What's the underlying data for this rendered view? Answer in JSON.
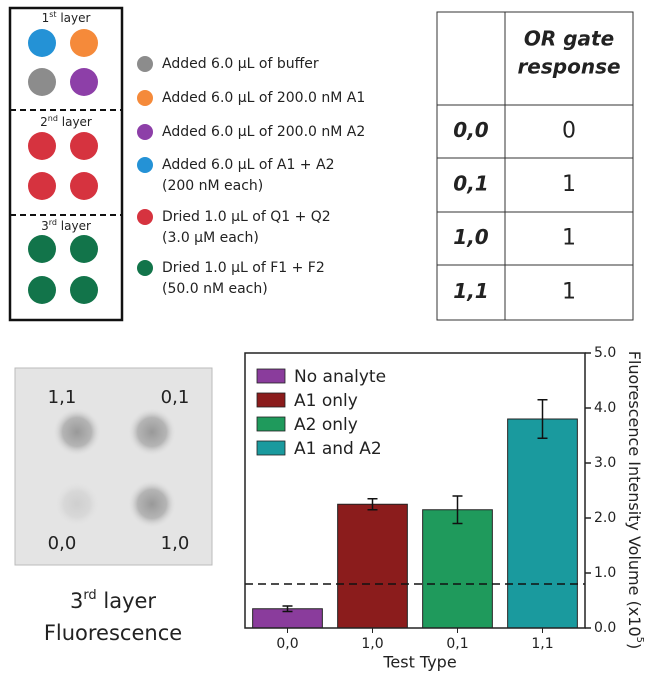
{
  "diagram": {
    "layers": [
      {
        "num": "1",
        "sup": "st",
        "text": " layer"
      },
      {
        "num": "2",
        "sup": "nd",
        "text": " layer"
      },
      {
        "num": "3",
        "sup": "rd",
        "text": " layer"
      }
    ],
    "legend": [
      {
        "color": "#8c8c8c",
        "lines": [
          "Added 6.0 μL of buffer"
        ]
      },
      {
        "color": "#f58a3a",
        "lines": [
          "Added 6.0 μL of 200.0 nM A1"
        ]
      },
      {
        "color": "#8d3fa8",
        "lines": [
          "Added 6.0 μL of 200.0 nM A2"
        ]
      },
      {
        "color": "#2492d6",
        "lines": [
          "Added 6.0 μL of  A1 + A2",
          "(200 nM each)"
        ]
      },
      {
        "color": "#d6333f",
        "lines": [
          "Dried 1.0 μL of Q1 + Q2",
          "(3.0 μM each)"
        ]
      },
      {
        "color": "#12744a",
        "lines": [
          "Dried 1.0 μL of F1 + F2",
          "(50.0 nM each)"
        ]
      }
    ]
  },
  "table": {
    "header": [
      "OR gate",
      "response"
    ],
    "rows": [
      [
        "0,0",
        "0"
      ],
      [
        "0,1",
        "1"
      ],
      [
        "1,0",
        "1"
      ],
      [
        "1,1",
        "1"
      ]
    ]
  },
  "image": {
    "labels": [
      "1,1",
      "0,1",
      "0,0",
      "1,0"
    ],
    "caption": {
      "num": "3",
      "sup": "rd",
      "text": " layer",
      "line2": "Fluorescence"
    }
  },
  "chart_data": {
    "type": "bar",
    "categories": [
      "0,0",
      "1,0",
      "0,1",
      "1,1"
    ],
    "values": [
      0.35,
      2.25,
      2.15,
      3.8
    ],
    "errors": [
      0.05,
      0.1,
      0.25,
      0.35
    ],
    "colors": [
      "#8a3c9c",
      "#8b1c1c",
      "#1f9a5c",
      "#1a9a9e"
    ],
    "legend": [
      "No analyte",
      "A1 only",
      "A2 only",
      "A1 and A2"
    ],
    "x_label": "Test Type",
    "y_label": "Fluorescence Intensity Volume (x10",
    "y_label_sup": "5",
    "y_label_end": ")",
    "y_axis_side": "right",
    "ylim": [
      0,
      5
    ],
    "yticks": [
      {
        "value": 0,
        "label": "0.0"
      },
      {
        "value": 1,
        "label": "1.0"
      },
      {
        "value": 2,
        "label": "2.0"
      },
      {
        "value": 3,
        "label": "3.0"
      },
      {
        "value": 4,
        "label": "4.0"
      },
      {
        "value": 5,
        "label": "5.0"
      }
    ],
    "threshold": 0.8
  }
}
